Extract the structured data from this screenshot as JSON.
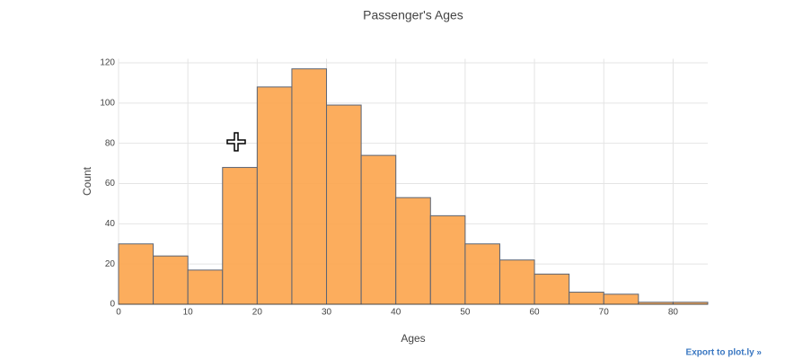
{
  "chart_data": {
    "type": "histogram",
    "title": "Passenger's Ages",
    "xlabel": "Ages",
    "ylabel": "Count",
    "bins": [
      0,
      5,
      10,
      15,
      20,
      25,
      30,
      35,
      40,
      45,
      50,
      55,
      60,
      65,
      70,
      75,
      80,
      85
    ],
    "counts": [
      30,
      24,
      17,
      68,
      108,
      117,
      99,
      74,
      53,
      44,
      30,
      22,
      15,
      6,
      5,
      1,
      1
    ],
    "color": "#fca44b",
    "edgecolor": "#5b6474",
    "xlim": [
      0,
      85
    ],
    "xticks": [
      0,
      10,
      20,
      30,
      40,
      50,
      60,
      70,
      80
    ],
    "ylim": [
      0,
      122
    ],
    "yticks": [
      0,
      20,
      40,
      60,
      80,
      100,
      120
    ],
    "grid": true
  },
  "export_link": "Export to plot.ly »"
}
